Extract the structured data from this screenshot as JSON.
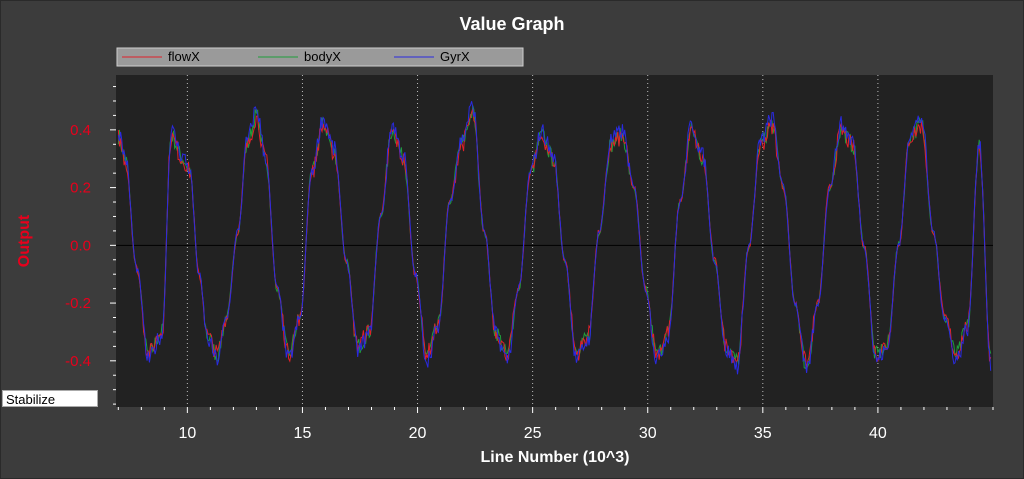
{
  "colors": {
    "background": "#3c3c3c",
    "plot_background": "#222222",
    "legend_background": "#9a9a9a",
    "axis_label": "#e8001c",
    "zero_line": "#000000"
  },
  "mode_box": {
    "label": "Stabilize"
  },
  "chart_data": {
    "type": "line",
    "title": "Value Graph",
    "xlabel": "Line Number (10^3)",
    "ylabel": "Output",
    "xlim": [
      6.9,
      45.0
    ],
    "ylim": [
      -0.56,
      0.59
    ],
    "xticks": [
      10,
      15,
      20,
      25,
      30,
      35,
      40
    ],
    "yticks": [
      -0.4,
      -0.2,
      0.0,
      0.2,
      0.4
    ],
    "ytick_labels": [
      "-0.4",
      "-0.2",
      "0.0",
      "0.2",
      "0.4"
    ],
    "grid": "vertical dotted at x ticks",
    "legend_position": "top-left",
    "series": [
      {
        "name": "flowX",
        "color": "#e0202a"
      },
      {
        "name": "bodyX",
        "color": "#1e9e3a"
      },
      {
        "name": "GyrX",
        "color": "#2a2ae0"
      }
    ],
    "wave_shape": {
      "description": "oscillating signal, all three series nearly overlap",
      "x": [
        7.0,
        7.3,
        7.8,
        8.3,
        8.9,
        9.3,
        9.8,
        10.1,
        10.5,
        10.9,
        11.3,
        11.7,
        12.2,
        12.6,
        13.0,
        13.4,
        13.9,
        14.4,
        14.9,
        15.4,
        15.9,
        16.4,
        16.9,
        17.4,
        17.9,
        18.4,
        18.9,
        19.4,
        19.9,
        20.4,
        20.9,
        21.4,
        21.9,
        22.4,
        22.9,
        23.4,
        23.9,
        24.4,
        24.9,
        25.4,
        25.9,
        26.4,
        26.9,
        27.4,
        27.9,
        28.4,
        28.9,
        29.4,
        29.9,
        30.4,
        30.9,
        31.4,
        31.9,
        32.4,
        32.9,
        33.4,
        33.9,
        34.4,
        34.9,
        35.4,
        35.9,
        36.4,
        36.9,
        37.4,
        37.9,
        38.4,
        38.9,
        39.4,
        39.9,
        40.4,
        40.9,
        41.4,
        41.9,
        42.4,
        42.9,
        43.4,
        43.9,
        44.4,
        44.9
      ],
      "y": [
        0.38,
        0.3,
        -0.08,
        -0.38,
        -0.3,
        0.38,
        0.3,
        0.26,
        -0.1,
        -0.32,
        -0.38,
        -0.25,
        0.05,
        0.35,
        0.45,
        0.3,
        -0.15,
        -0.38,
        -0.25,
        0.25,
        0.42,
        0.32,
        -0.05,
        -0.35,
        -0.3,
        0.1,
        0.4,
        0.3,
        -0.1,
        -0.38,
        -0.28,
        0.15,
        0.35,
        0.46,
        0.05,
        -0.3,
        -0.38,
        -0.15,
        0.25,
        0.38,
        0.3,
        -0.05,
        -0.38,
        -0.32,
        0.05,
        0.35,
        0.38,
        0.2,
        -0.15,
        -0.38,
        -0.3,
        0.15,
        0.4,
        0.3,
        -0.05,
        -0.35,
        -0.4,
        0.0,
        0.35,
        0.42,
        0.2,
        -0.2,
        -0.42,
        -0.2,
        0.2,
        0.4,
        0.35,
        0.0,
        -0.38,
        -0.35,
        0.0,
        0.38,
        0.42,
        0.05,
        -0.25,
        -0.38,
        -0.28,
        0.35,
        -0.4
      ]
    }
  }
}
